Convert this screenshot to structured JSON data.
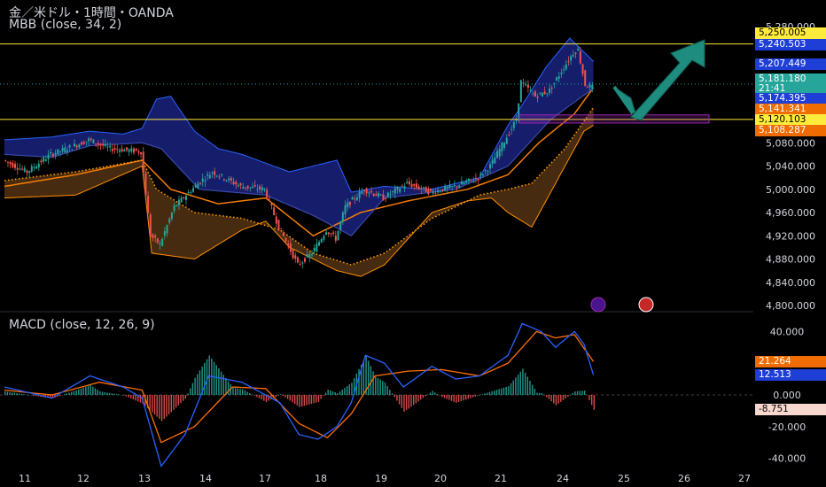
{
  "header": {
    "title": "金／米ドル・1時間・OANDA",
    "indicator": "MBB (close, 34, 2)",
    "macd_label": "MACD (close, 12, 26, 9)"
  },
  "colors": {
    "background": "#000000",
    "up_candle": "#26a69a",
    "down_candle": "#ef5350",
    "upper_band_fill": "#1a237e",
    "lower_band_fill": "#5d3a16",
    "upper_band_line": "#2962ff",
    "lower_band_line": "#ff8f00",
    "mid_line": "#f57c00",
    "horizontal_level": "#ffeb3b",
    "macd_line": "#2962ff",
    "signal_line": "#ff6d00",
    "arrow": "#1e8c7e",
    "zone": "#9c27b0"
  },
  "price_levels": [
    {
      "label": "5,250.005",
      "bg": "#ffeb3b",
      "fg": "#000000"
    },
    {
      "label": "5,240.503",
      "bg": "#1e3ed6",
      "fg": "#ffffff"
    },
    {
      "label": "5,207.449",
      "bg": "#1e3ed6",
      "fg": "#ffffff"
    },
    {
      "label": "5,181.180",
      "bg": "#26a69a",
      "fg": "#ffffff"
    },
    {
      "label": "21:41",
      "bg": "#26a69a",
      "fg": "#ffffff"
    },
    {
      "label": "5,174.395",
      "bg": "#1e3ed6",
      "fg": "#ffffff"
    },
    {
      "label": "5,141.341",
      "bg": "#ef6c00",
      "fg": "#ffffff"
    },
    {
      "label": "5,120.103",
      "bg": "#ffeb3b",
      "fg": "#000000"
    },
    {
      "label": "5,108.287",
      "bg": "#ef6c00",
      "fg": "#ffffff"
    }
  ],
  "macd_levels": [
    {
      "label": "21.264",
      "bg": "#ef6c00",
      "fg": "#ffffff"
    },
    {
      "label": "12.513",
      "bg": "#1e3ed6",
      "fg": "#ffffff"
    },
    {
      "label": "-8.751",
      "bg": "#f8d7cf",
      "fg": "#000000"
    }
  ],
  "chart_data": [
    {
      "type": "candlestick",
      "title": "金／米ドル・1時間・OANDA",
      "x_ticks": [
        "11",
        "12",
        "13",
        "14",
        "17",
        "18",
        "19",
        "20",
        "21",
        "24",
        "25",
        "26",
        "27"
      ],
      "y_ticks": [
        "5,280.000",
        "5,120.000",
        "5,080.000",
        "5,040.000",
        "5,000.000",
        "4,960.000",
        "4,920.000",
        "4,880.000",
        "4,840.000",
        "4,800.000"
      ],
      "ylim": [
        4800,
        5280
      ],
      "horizontal_lines": [
        5250.005,
        5120.103
      ],
      "series": [
        {
          "name": "price",
          "anchors": [
            [
              0,
              5050
            ],
            [
              10,
              5030
            ],
            [
              20,
              5060
            ],
            [
              30,
              5075
            ],
            [
              36,
              5085
            ],
            [
              45,
              5070
            ],
            [
              58,
              5065
            ],
            [
              62,
              4920
            ],
            [
              66,
              4905
            ],
            [
              72,
              4970
            ],
            [
              82,
              5010
            ],
            [
              88,
              5030
            ],
            [
              100,
              5005
            ],
            [
              110,
              5000
            ],
            [
              116,
              4935
            ],
            [
              124,
              4870
            ],
            [
              130,
              4890
            ],
            [
              136,
              4930
            ],
            [
              140,
              4915
            ],
            [
              144,
              4970
            ],
            [
              152,
              5000
            ],
            [
              160,
              4985
            ],
            [
              170,
              5010
            ],
            [
              180,
              4995
            ],
            [
              190,
              5005
            ],
            [
              200,
              5020
            ],
            [
              205,
              5040
            ],
            [
              212,
              5090
            ],
            [
              216,
              5120
            ],
            [
              218,
              5185
            ],
            [
              224,
              5160
            ],
            [
              230,
              5170
            ],
            [
              236,
              5210
            ],
            [
              240,
              5235
            ],
            [
              242,
              5240
            ],
            [
              245,
              5180
            ],
            [
              248,
              5175
            ],
            [
              250,
              5185
            ]
          ]
        },
        {
          "name": "upper band",
          "anchors": [
            [
              0,
              5085
            ],
            [
              20,
              5090
            ],
            [
              36,
              5100
            ],
            [
              50,
              5095
            ],
            [
              58,
              5105
            ],
            [
              64,
              5155
            ],
            [
              70,
              5160
            ],
            [
              80,
              5100
            ],
            [
              90,
              5070
            ],
            [
              100,
              5060
            ],
            [
              120,
              5030
            ],
            [
              140,
              5050
            ],
            [
              146,
              4995
            ],
            [
              160,
              5005
            ],
            [
              180,
              5000
            ],
            [
              200,
              5020
            ],
            [
              212,
              5110
            ],
            [
              218,
              5145
            ],
            [
              228,
              5210
            ],
            [
              238,
              5260
            ],
            [
              248,
              5220
            ]
          ]
        },
        {
          "name": "mid band",
          "anchors": [
            [
              0,
              5005
            ],
            [
              30,
              5025
            ],
            [
              58,
              5050
            ],
            [
              70,
              5000
            ],
            [
              90,
              4975
            ],
            [
              110,
              4985
            ],
            [
              130,
              4920
            ],
            [
              150,
              4960
            ],
            [
              170,
              4980
            ],
            [
              195,
              5000
            ],
            [
              212,
              5025
            ],
            [
              225,
              5080
            ],
            [
              240,
              5130
            ],
            [
              248,
              5175
            ]
          ]
        },
        {
          "name": "lower band",
          "anchors": [
            [
              0,
              4985
            ],
            [
              30,
              4990
            ],
            [
              58,
              5040
            ],
            [
              62,
              4890
            ],
            [
              80,
              4880
            ],
            [
              100,
              4930
            ],
            [
              110,
              4945
            ],
            [
              120,
              4900
            ],
            [
              140,
              4860
            ],
            [
              150,
              4850
            ],
            [
              160,
              4870
            ],
            [
              180,
              4960
            ],
            [
              195,
              4980
            ],
            [
              205,
              4985
            ],
            [
              212,
              4960
            ],
            [
              222,
              4935
            ],
            [
              232,
              5010
            ],
            [
              244,
              5100
            ],
            [
              248,
              5110
            ]
          ]
        },
        {
          "name": "upper dotted",
          "anchors": [
            [
              0,
              5060
            ],
            [
              20,
              5055
            ],
            [
              36,
              5075
            ],
            [
              58,
              5080
            ],
            [
              66,
              5070
            ],
            [
              82,
              5000
            ],
            [
              110,
              4990
            ],
            [
              130,
              4955
            ],
            [
              146,
              4920
            ],
            [
              160,
              4985
            ],
            [
              190,
              5000
            ],
            [
              212,
              5040
            ],
            [
              230,
              5120
            ],
            [
              248,
              5174
            ]
          ]
        },
        {
          "name": "lower dotted",
          "anchors": [
            [
              0,
              5015
            ],
            [
              30,
              5030
            ],
            [
              58,
              5050
            ],
            [
              64,
              5000
            ],
            [
              80,
              4960
            ],
            [
              100,
              4950
            ],
            [
              116,
              4930
            ],
            [
              130,
              4890
            ],
            [
              146,
              4870
            ],
            [
              160,
              4890
            ],
            [
              180,
              4950
            ],
            [
              200,
              4990
            ],
            [
              212,
              5000
            ],
            [
              222,
              5010
            ],
            [
              236,
              5070
            ],
            [
              248,
              5141
            ]
          ]
        }
      ]
    },
    {
      "type": "line",
      "title": "MACD (close, 12, 26, 9)",
      "y_ticks": [
        "40.000",
        "20.000",
        "0.000",
        "-20.000",
        "-40.000"
      ],
      "ylim": [
        -45,
        48
      ],
      "series": [
        {
          "name": "MACD",
          "anchors": [
            [
              0,
              5
            ],
            [
              20,
              -2
            ],
            [
              36,
              12
            ],
            [
              50,
              5
            ],
            [
              58,
              -2
            ],
            [
              66,
              -45
            ],
            [
              76,
              -25
            ],
            [
              86,
              12
            ],
            [
              100,
              8
            ],
            [
              116,
              -5
            ],
            [
              124,
              -25
            ],
            [
              132,
              -28
            ],
            [
              140,
              -20
            ],
            [
              146,
              -5
            ],
            [
              152,
              25
            ],
            [
              160,
              20
            ],
            [
              168,
              5
            ],
            [
              180,
              18
            ],
            [
              190,
              10
            ],
            [
              200,
              12
            ],
            [
              212,
              25
            ],
            [
              218,
              45
            ],
            [
              226,
              40
            ],
            [
              232,
              30
            ],
            [
              240,
              40
            ],
            [
              244,
              32
            ],
            [
              248,
              12.5
            ]
          ]
        },
        {
          "name": "Signal",
          "anchors": [
            [
              0,
              3
            ],
            [
              20,
              0
            ],
            [
              40,
              8
            ],
            [
              58,
              3
            ],
            [
              66,
              -30
            ],
            [
              80,
              -20
            ],
            [
              96,
              5
            ],
            [
              110,
              4
            ],
            [
              124,
              -18
            ],
            [
              136,
              -27
            ],
            [
              146,
              -12
            ],
            [
              156,
              12
            ],
            [
              170,
              15
            ],
            [
              184,
              16
            ],
            [
              200,
              12
            ],
            [
              212,
              20
            ],
            [
              224,
              40
            ],
            [
              232,
              36
            ],
            [
              240,
              38
            ],
            [
              248,
              21
            ]
          ]
        }
      ]
    }
  ]
}
